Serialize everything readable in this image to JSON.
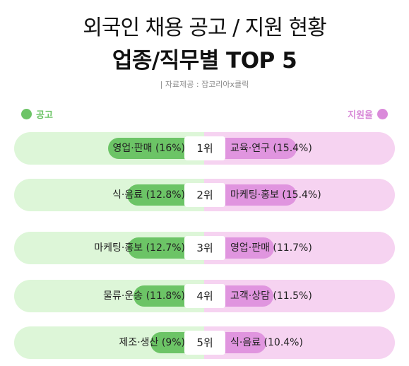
{
  "title": "외국인 채용 공고 / 지원 현황",
  "subtitle": "업종/직무별 TOP 5",
  "source": "| 자료제공 : 잡코리아x클릭",
  "legend": {
    "left": "공고",
    "right": "지원율"
  },
  "colors": {
    "left_bar": "#6cc466",
    "left_bg": "#ddf6d8",
    "right_bar": "#e095df",
    "right_bg": "#f6d3f1"
  },
  "chart_data": {
    "type": "bar",
    "title": "외국인 채용 공고 / 지원 현황",
    "subtitle": "업종/직무별 TOP 5",
    "ranks": [
      "1위",
      "2위",
      "3위",
      "4위",
      "5위"
    ],
    "series": [
      {
        "name": "공고",
        "categories": [
          "영업·판매",
          "식·음료",
          "마케팅·홍보",
          "물류·운송",
          "제조·생산"
        ],
        "values": [
          16,
          12.8,
          12.7,
          11.8,
          9
        ],
        "labels": [
          "영업·판매 (16%)",
          "식·음료 (12.8%)",
          "마케팅·홍보 (12.7%)",
          "물류·운송 (11.8%)",
          "제조·생산 (9%)"
        ]
      },
      {
        "name": "지원율",
        "categories": [
          "교육·연구",
          "마케팅·홍보",
          "영업·판매",
          "고객·상담",
          "식·음료"
        ],
        "values": [
          15.4,
          15.4,
          11.7,
          11.5,
          10.4
        ],
        "labels": [
          "교육·연구 (15.4%)",
          "마케팅·홍보 (15.4%)",
          "영업·판매 (11.7%)",
          "고객·상담 (11.5%)",
          "식·음료 (10.4%)"
        ]
      }
    ]
  }
}
